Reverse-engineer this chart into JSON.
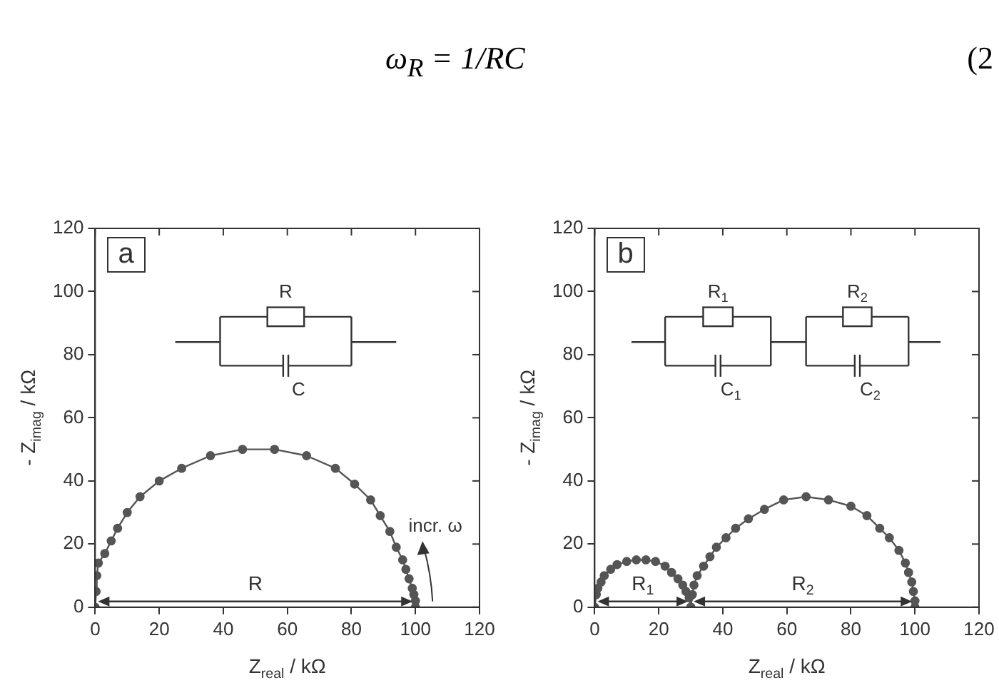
{
  "chart_data": [
    {
      "type": "other",
      "annotations": [
        "ω$_{R}$ = 1/RC",
        "(2"
      ]
    },
    {
      "type": "line",
      "marker": "circle",
      "xlabel": "Z$_{real}$ / kΩ",
      "ylabel": "- Z$_{imag}$ / kΩ",
      "xlim": [
        0,
        120
      ],
      "ylim": [
        0,
        120
      ],
      "xticks": [
        0,
        20,
        40,
        60,
        80,
        100,
        120
      ],
      "yticks": [
        0,
        20,
        40,
        60,
        80,
        100,
        120
      ],
      "series": [
        {
          "color": "#555555",
          "x": [
            0,
            0.3,
            0.5,
            1,
            3,
            5,
            7,
            10,
            14,
            20,
            27,
            36,
            46,
            56,
            66,
            75,
            81,
            86,
            89,
            92,
            94,
            96,
            97,
            98,
            99,
            99.5,
            100,
            100
          ],
          "values": [
            0,
            5,
            10,
            14,
            17,
            21,
            25,
            30,
            35,
            40,
            44,
            48,
            50,
            50,
            48,
            44,
            39,
            34,
            29,
            24,
            19,
            15,
            12,
            9,
            6,
            4,
            2,
            0
          ]
        }
      ],
      "annotations": [
        "a",
        "R",
        "C",
        "R",
        "incr. ω"
      ]
    },
    {
      "type": "line",
      "marker": "circle",
      "xlabel": "Z$_{real}$ / kΩ",
      "ylabel": "- Z$_{imag}$ / kΩ",
      "xlim": [
        0,
        120
      ],
      "ylim": [
        0,
        120
      ],
      "xticks": [
        0,
        20,
        40,
        60,
        80,
        100,
        120
      ],
      "yticks": [
        0,
        20,
        40,
        60,
        80,
        100,
        120
      ],
      "series": [
        {
          "color": "#555555",
          "x": [
            0,
            0.5,
            1,
            2,
            3,
            5,
            7,
            10,
            13,
            16,
            19,
            22,
            24,
            26,
            27.5,
            28.5,
            29.5,
            30
          ],
          "values": [
            0,
            4,
            6,
            8,
            10,
            12,
            13.5,
            14.5,
            15,
            15,
            14.5,
            13,
            11,
            9,
            7,
            5,
            3,
            0
          ]
        },
        {
          "color": "#555555",
          "x": [
            30,
            30.5,
            31,
            32,
            34,
            36,
            38,
            41,
            44,
            48,
            53,
            59,
            66,
            73,
            80,
            85,
            89,
            92,
            95,
            97,
            98,
            99,
            99.5,
            100,
            100
          ],
          "values": [
            0,
            4,
            7,
            10,
            13,
            16,
            19,
            22,
            25,
            28,
            31,
            34,
            35,
            34,
            32,
            29,
            25,
            22,
            18,
            14,
            11,
            8,
            5,
            2,
            0
          ]
        }
      ],
      "annotations": [
        "b",
        "R$_{1}$",
        "C$_{1}$",
        "R$_{2}$",
        "C$_{2}$",
        "R$_{1}$",
        "R$_{2}$"
      ]
    }
  ]
}
